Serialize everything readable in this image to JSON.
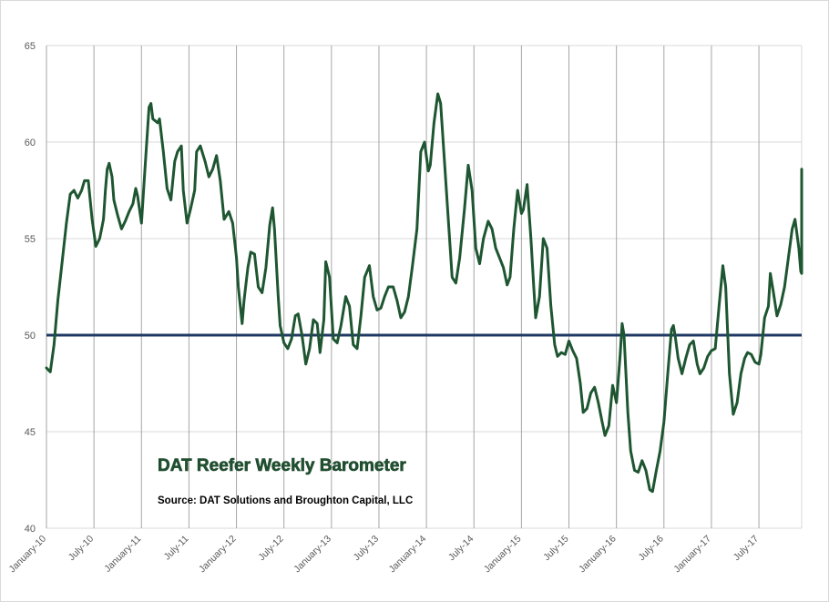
{
  "chart_data": {
    "type": "line",
    "title": "DAT Reefer Weekly Barometer",
    "source": "Source: DAT Solutions and Broughton Capital, LLC",
    "ylim": [
      40,
      65
    ],
    "yticks": [
      "40",
      "45",
      "50",
      "55",
      "60",
      "65"
    ],
    "x_tick_labels": [
      "January-10",
      "July-10",
      "January-11",
      "July-11",
      "January-12",
      "July-12",
      "January-13",
      "July-13",
      "January-14",
      "July-14",
      "January-15",
      "July-15",
      "January-16",
      "July-16",
      "January-17",
      "July-17"
    ],
    "xlim": [
      2010.0,
      2017.95
    ],
    "grid": "vertical and horizontal",
    "reference_line": {
      "y": 50,
      "color": "#1f3864"
    },
    "series": [
      {
        "color": "#1e5631",
        "points": [
          [
            2010.0,
            48.3
          ],
          [
            2010.04,
            48.1
          ],
          [
            2010.08,
            49.5
          ],
          [
            2010.12,
            51.8
          ],
          [
            2010.17,
            54.0
          ],
          [
            2010.21,
            55.8
          ],
          [
            2010.25,
            57.3
          ],
          [
            2010.29,
            57.5
          ],
          [
            2010.33,
            57.1
          ],
          [
            2010.37,
            57.5
          ],
          [
            2010.4,
            58.0
          ],
          [
            2010.44,
            58.0
          ],
          [
            2010.48,
            56.0
          ],
          [
            2010.52,
            54.6
          ],
          [
            2010.56,
            55.0
          ],
          [
            2010.6,
            56.0
          ],
          [
            2010.62,
            57.5
          ],
          [
            2010.64,
            58.6
          ],
          [
            2010.66,
            58.9
          ],
          [
            2010.69,
            58.2
          ],
          [
            2010.71,
            57.0
          ],
          [
            2010.75,
            56.2
          ],
          [
            2010.79,
            55.5
          ],
          [
            2010.83,
            55.9
          ],
          [
            2010.87,
            56.4
          ],
          [
            2010.91,
            56.8
          ],
          [
            2010.94,
            57.6
          ],
          [
            2010.96,
            57.2
          ],
          [
            2011.0,
            55.8
          ],
          [
            2011.04,
            58.8
          ],
          [
            2011.08,
            61.8
          ],
          [
            2011.1,
            62.0
          ],
          [
            2011.12,
            61.2
          ],
          [
            2011.17,
            61.0
          ],
          [
            2011.19,
            61.2
          ],
          [
            2011.23,
            59.5
          ],
          [
            2011.27,
            57.6
          ],
          [
            2011.31,
            57.0
          ],
          [
            2011.35,
            59.0
          ],
          [
            2011.38,
            59.5
          ],
          [
            2011.42,
            59.8
          ],
          [
            2011.44,
            57.5
          ],
          [
            2011.48,
            55.8
          ],
          [
            2011.52,
            56.6
          ],
          [
            2011.56,
            57.5
          ],
          [
            2011.58,
            59.5
          ],
          [
            2011.62,
            59.8
          ],
          [
            2011.67,
            59.0
          ],
          [
            2011.71,
            58.2
          ],
          [
            2011.75,
            58.6
          ],
          [
            2011.79,
            59.3
          ],
          [
            2011.83,
            58.0
          ],
          [
            2011.87,
            56.0
          ],
          [
            2011.92,
            56.4
          ],
          [
            2011.96,
            55.8
          ],
          [
            2012.0,
            54.0
          ],
          [
            2012.02,
            52.5
          ],
          [
            2012.06,
            50.6
          ],
          [
            2012.08,
            51.8
          ],
          [
            2012.12,
            53.5
          ],
          [
            2012.15,
            54.3
          ],
          [
            2012.19,
            54.2
          ],
          [
            2012.23,
            52.5
          ],
          [
            2012.27,
            52.2
          ],
          [
            2012.31,
            53.5
          ],
          [
            2012.35,
            55.7
          ],
          [
            2012.38,
            56.6
          ],
          [
            2012.4,
            55.5
          ],
          [
            2012.44,
            52.0
          ],
          [
            2012.46,
            50.5
          ],
          [
            2012.5,
            49.6
          ],
          [
            2012.54,
            49.3
          ],
          [
            2012.58,
            49.8
          ],
          [
            2012.62,
            51.0
          ],
          [
            2012.65,
            51.1
          ],
          [
            2012.69,
            50.0
          ],
          [
            2012.73,
            48.5
          ],
          [
            2012.77,
            49.3
          ],
          [
            2012.81,
            50.8
          ],
          [
            2012.85,
            50.6
          ],
          [
            2012.88,
            49.1
          ],
          [
            2012.92,
            50.8
          ],
          [
            2012.94,
            53.8
          ],
          [
            2012.98,
            53.0
          ],
          [
            2013.02,
            49.8
          ],
          [
            2013.06,
            49.6
          ],
          [
            2013.1,
            50.5
          ],
          [
            2013.15,
            52.0
          ],
          [
            2013.19,
            51.5
          ],
          [
            2013.23,
            49.5
          ],
          [
            2013.27,
            49.3
          ],
          [
            2013.31,
            51.0
          ],
          [
            2013.35,
            53.0
          ],
          [
            2013.4,
            53.6
          ],
          [
            2013.44,
            52.0
          ],
          [
            2013.48,
            51.3
          ],
          [
            2013.52,
            51.4
          ],
          [
            2013.56,
            52.0
          ],
          [
            2013.6,
            52.5
          ],
          [
            2013.65,
            52.5
          ],
          [
            2013.69,
            51.8
          ],
          [
            2013.73,
            50.9
          ],
          [
            2013.77,
            51.2
          ],
          [
            2013.81,
            52.0
          ],
          [
            2013.85,
            53.5
          ],
          [
            2013.9,
            55.5
          ],
          [
            2013.94,
            59.5
          ],
          [
            2013.98,
            60.0
          ],
          [
            2014.02,
            58.5
          ],
          [
            2014.04,
            58.8
          ],
          [
            2014.08,
            61.0
          ],
          [
            2014.12,
            62.5
          ],
          [
            2014.15,
            62.0
          ],
          [
            2014.19,
            59.0
          ],
          [
            2014.23,
            56.0
          ],
          [
            2014.27,
            53.0
          ],
          [
            2014.31,
            52.7
          ],
          [
            2014.35,
            54.0
          ],
          [
            2014.4,
            56.5
          ],
          [
            2014.44,
            58.8
          ],
          [
            2014.48,
            57.5
          ],
          [
            2014.52,
            54.5
          ],
          [
            2014.56,
            53.7
          ],
          [
            2014.6,
            55.0
          ],
          [
            2014.65,
            55.9
          ],
          [
            2014.69,
            55.5
          ],
          [
            2014.73,
            54.5
          ],
          [
            2014.77,
            54.0
          ],
          [
            2014.81,
            53.5
          ],
          [
            2014.85,
            52.6
          ],
          [
            2014.88,
            53.0
          ],
          [
            2014.92,
            55.5
          ],
          [
            2014.96,
            57.5
          ],
          [
            2015.0,
            56.3
          ],
          [
            2015.02,
            56.5
          ],
          [
            2015.06,
            57.8
          ],
          [
            2015.1,
            55.0
          ],
          [
            2015.13,
            52.5
          ],
          [
            2015.15,
            50.9
          ],
          [
            2015.19,
            52.0
          ],
          [
            2015.23,
            55.0
          ],
          [
            2015.27,
            54.5
          ],
          [
            2015.31,
            51.5
          ],
          [
            2015.35,
            49.5
          ],
          [
            2015.38,
            48.9
          ],
          [
            2015.42,
            49.1
          ],
          [
            2015.46,
            49.0
          ],
          [
            2015.5,
            49.7
          ],
          [
            2015.54,
            49.2
          ],
          [
            2015.58,
            48.8
          ],
          [
            2015.62,
            47.5
          ],
          [
            2015.65,
            46.0
          ],
          [
            2015.69,
            46.2
          ],
          [
            2015.73,
            47.0
          ],
          [
            2015.77,
            47.3
          ],
          [
            2015.81,
            46.5
          ],
          [
            2015.85,
            45.5
          ],
          [
            2015.88,
            44.8
          ],
          [
            2015.92,
            45.3
          ],
          [
            2015.96,
            47.4
          ],
          [
            2016.0,
            46.5
          ],
          [
            2016.04,
            49.0
          ],
          [
            2016.06,
            50.6
          ],
          [
            2016.08,
            50.0
          ],
          [
            2016.12,
            46.0
          ],
          [
            2016.15,
            44.0
          ],
          [
            2016.19,
            43.0
          ],
          [
            2016.23,
            42.9
          ],
          [
            2016.27,
            43.5
          ],
          [
            2016.31,
            43.0
          ],
          [
            2016.35,
            42.0
          ],
          [
            2016.38,
            41.9
          ],
          [
            2016.42,
            43.0
          ],
          [
            2016.46,
            44.0
          ],
          [
            2016.5,
            45.5
          ],
          [
            2016.54,
            48.0
          ],
          [
            2016.58,
            50.3
          ],
          [
            2016.6,
            50.5
          ],
          [
            2016.62,
            49.9
          ],
          [
            2016.65,
            48.8
          ],
          [
            2016.69,
            48.0
          ],
          [
            2016.73,
            48.8
          ],
          [
            2016.77,
            49.5
          ],
          [
            2016.81,
            49.7
          ],
          [
            2016.85,
            48.5
          ],
          [
            2016.88,
            48.0
          ],
          [
            2016.92,
            48.3
          ],
          [
            2016.96,
            48.9
          ],
          [
            2017.0,
            49.2
          ],
          [
            2017.04,
            49.3
          ],
          [
            2017.08,
            51.5
          ],
          [
            2017.12,
            53.6
          ],
          [
            2017.15,
            52.5
          ],
          [
            2017.19,
            48.0
          ],
          [
            2017.23,
            45.9
          ],
          [
            2017.27,
            46.5
          ],
          [
            2017.31,
            48.0
          ],
          [
            2017.35,
            48.8
          ],
          [
            2017.38,
            49.1
          ],
          [
            2017.42,
            49.0
          ],
          [
            2017.46,
            48.6
          ],
          [
            2017.5,
            48.5
          ],
          [
            2017.52,
            49.0
          ],
          [
            2017.56,
            50.9
          ],
          [
            2017.6,
            51.5
          ],
          [
            2017.62,
            53.2
          ],
          [
            2017.65,
            52.3
          ],
          [
            2017.69,
            51.0
          ],
          [
            2017.73,
            51.6
          ],
          [
            2017.77,
            52.5
          ],
          [
            2017.81,
            54.0
          ],
          [
            2017.85,
            55.5
          ],
          [
            2017.88,
            56.0
          ],
          [
            2017.92,
            54.5
          ],
          [
            2017.94,
            53.3
          ],
          [
            2017.96,
            53.2
          ],
          [
            2017.98,
            53.5
          ],
          [
            2018.0,
            54.6
          ],
          [
            2018.02,
            55.2
          ],
          [
            2018.04,
            56.2
          ],
          [
            2018.06,
            55.7
          ],
          [
            2018.08,
            58.6
          ]
        ]
      }
    ]
  }
}
